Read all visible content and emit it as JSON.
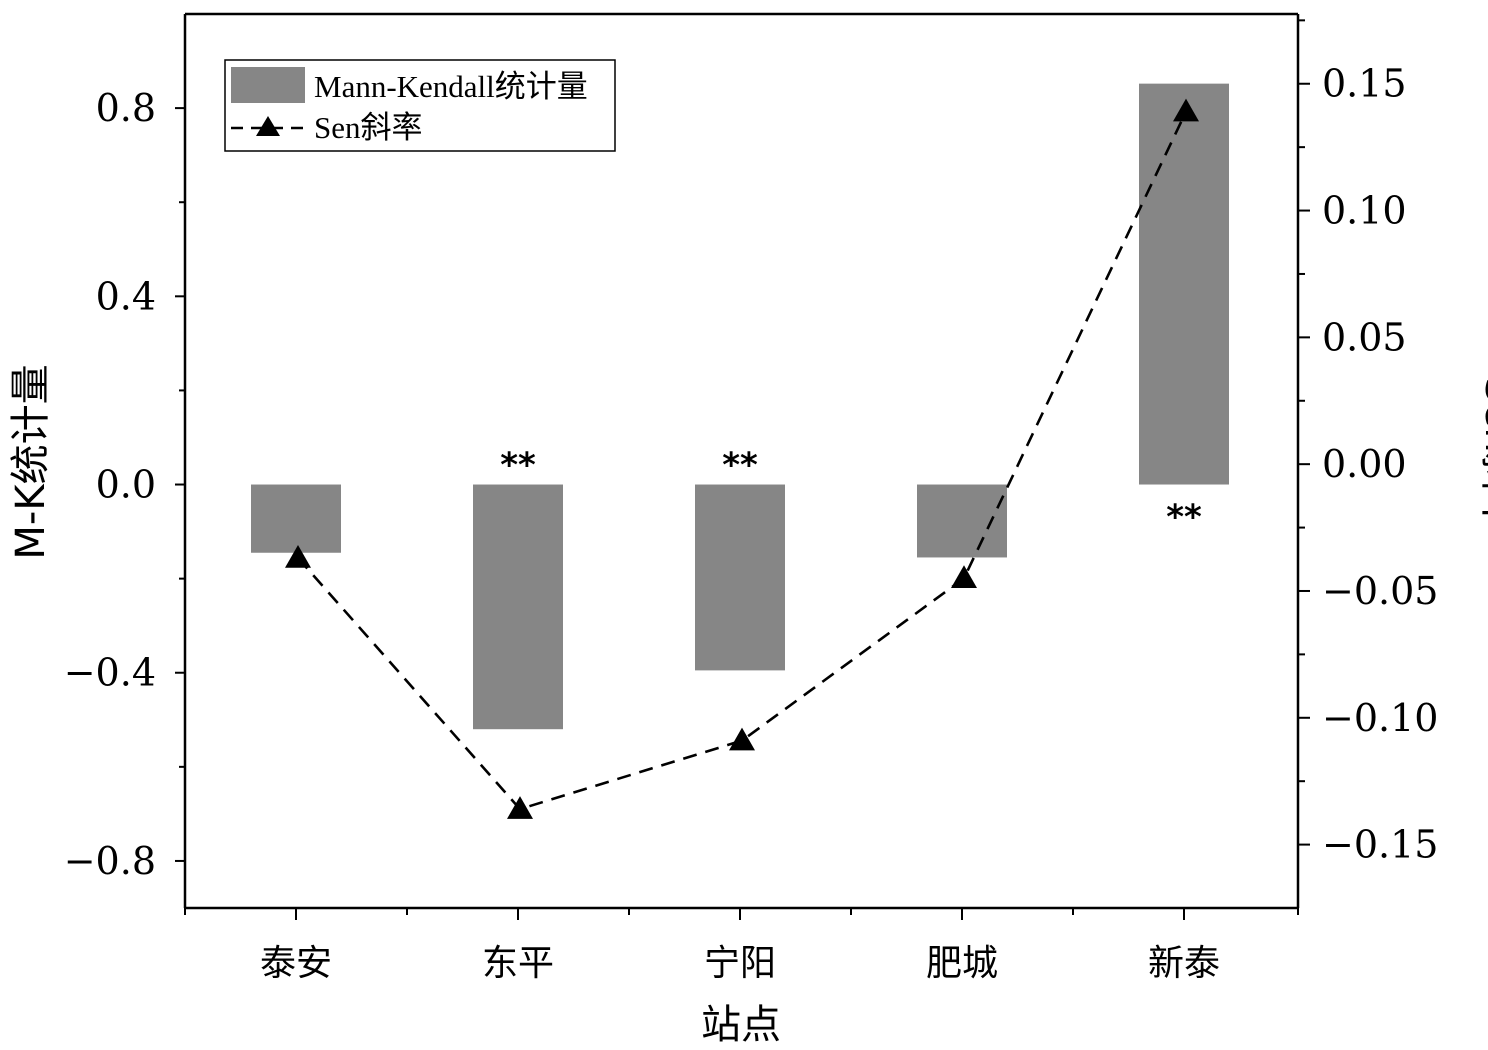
{
  "chart_data": {
    "type": "bar+line",
    "categories": [
      "泰安",
      "东平",
      "宁阳",
      "肥城",
      "新泰"
    ],
    "series": [
      {
        "name": "Mann-Kendall统计量",
        "type": "bar",
        "axis": "left",
        "values": [
          -0.145,
          -0.52,
          -0.395,
          -0.155,
          0.852
        ],
        "color": "#868686"
      },
      {
        "name": "Sen斜率",
        "type": "line",
        "axis": "right",
        "marker": "triangle",
        "line_style": "dashed",
        "values": [
          -0.037,
          -0.136,
          -0.109,
          -0.045,
          0.139
        ],
        "color": "#000000"
      }
    ],
    "significance": [
      "",
      "**",
      "**",
      "",
      "**"
    ],
    "xlabel": "站点",
    "ylabel_left": "M-K统计量",
    "ylabel_right": "Sen斜率",
    "ylim_left": [
      -0.9,
      1.0
    ],
    "ylim_right": [
      -0.175,
      0.1775
    ],
    "yticks_left": [
      "0.8",
      "0.4",
      "0.0",
      "−0.4",
      "−0.8"
    ],
    "yticks_left_values": [
      0.8,
      0.4,
      0.0,
      -0.4,
      -0.8
    ],
    "yticks_right": [
      "0.15",
      "0.10",
      "0.05",
      "0.00",
      "−0.05",
      "−0.10",
      "−0.15"
    ],
    "yticks_right_values": [
      0.15,
      0.1,
      0.05,
      0.0,
      -0.05,
      -0.1,
      -0.15
    ],
    "legend_position": "top-left",
    "grid": false
  }
}
